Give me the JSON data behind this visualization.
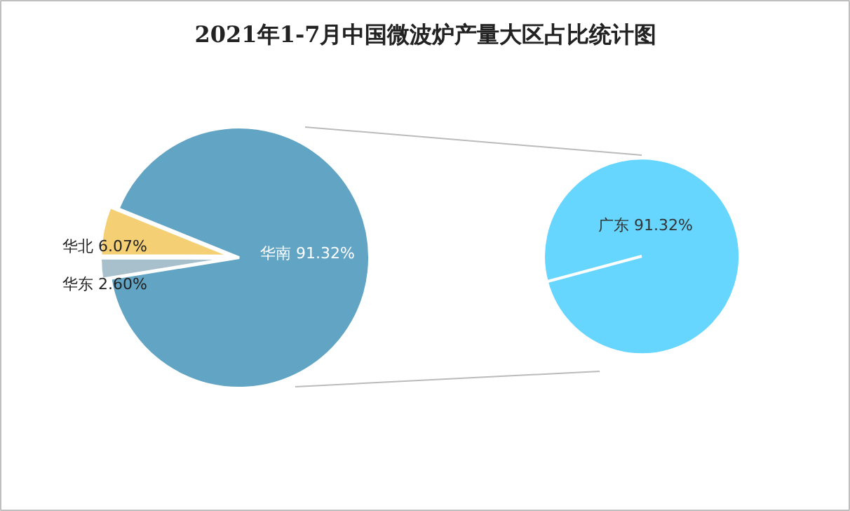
{
  "chart_data": [
    {
      "type": "pie",
      "title": "2021年1-7月中国微波炉产量大区占比统计图",
      "categories": [
        "华北",
        "华东",
        "华南"
      ],
      "values": [
        6.07,
        2.6,
        91.32
      ],
      "colors": [
        "#f5cf73",
        "#a8bfcc",
        "#62a4c4"
      ],
      "data_labels": true,
      "value_labels": [
        "6.07%",
        "2.60%",
        "91.32%"
      ]
    },
    {
      "type": "pie",
      "categories": [
        "广东"
      ],
      "values": [
        91.32
      ],
      "colors": [
        "#66d6ff"
      ],
      "data_labels": true,
      "value_labels": [
        "91.32%"
      ]
    }
  ]
}
